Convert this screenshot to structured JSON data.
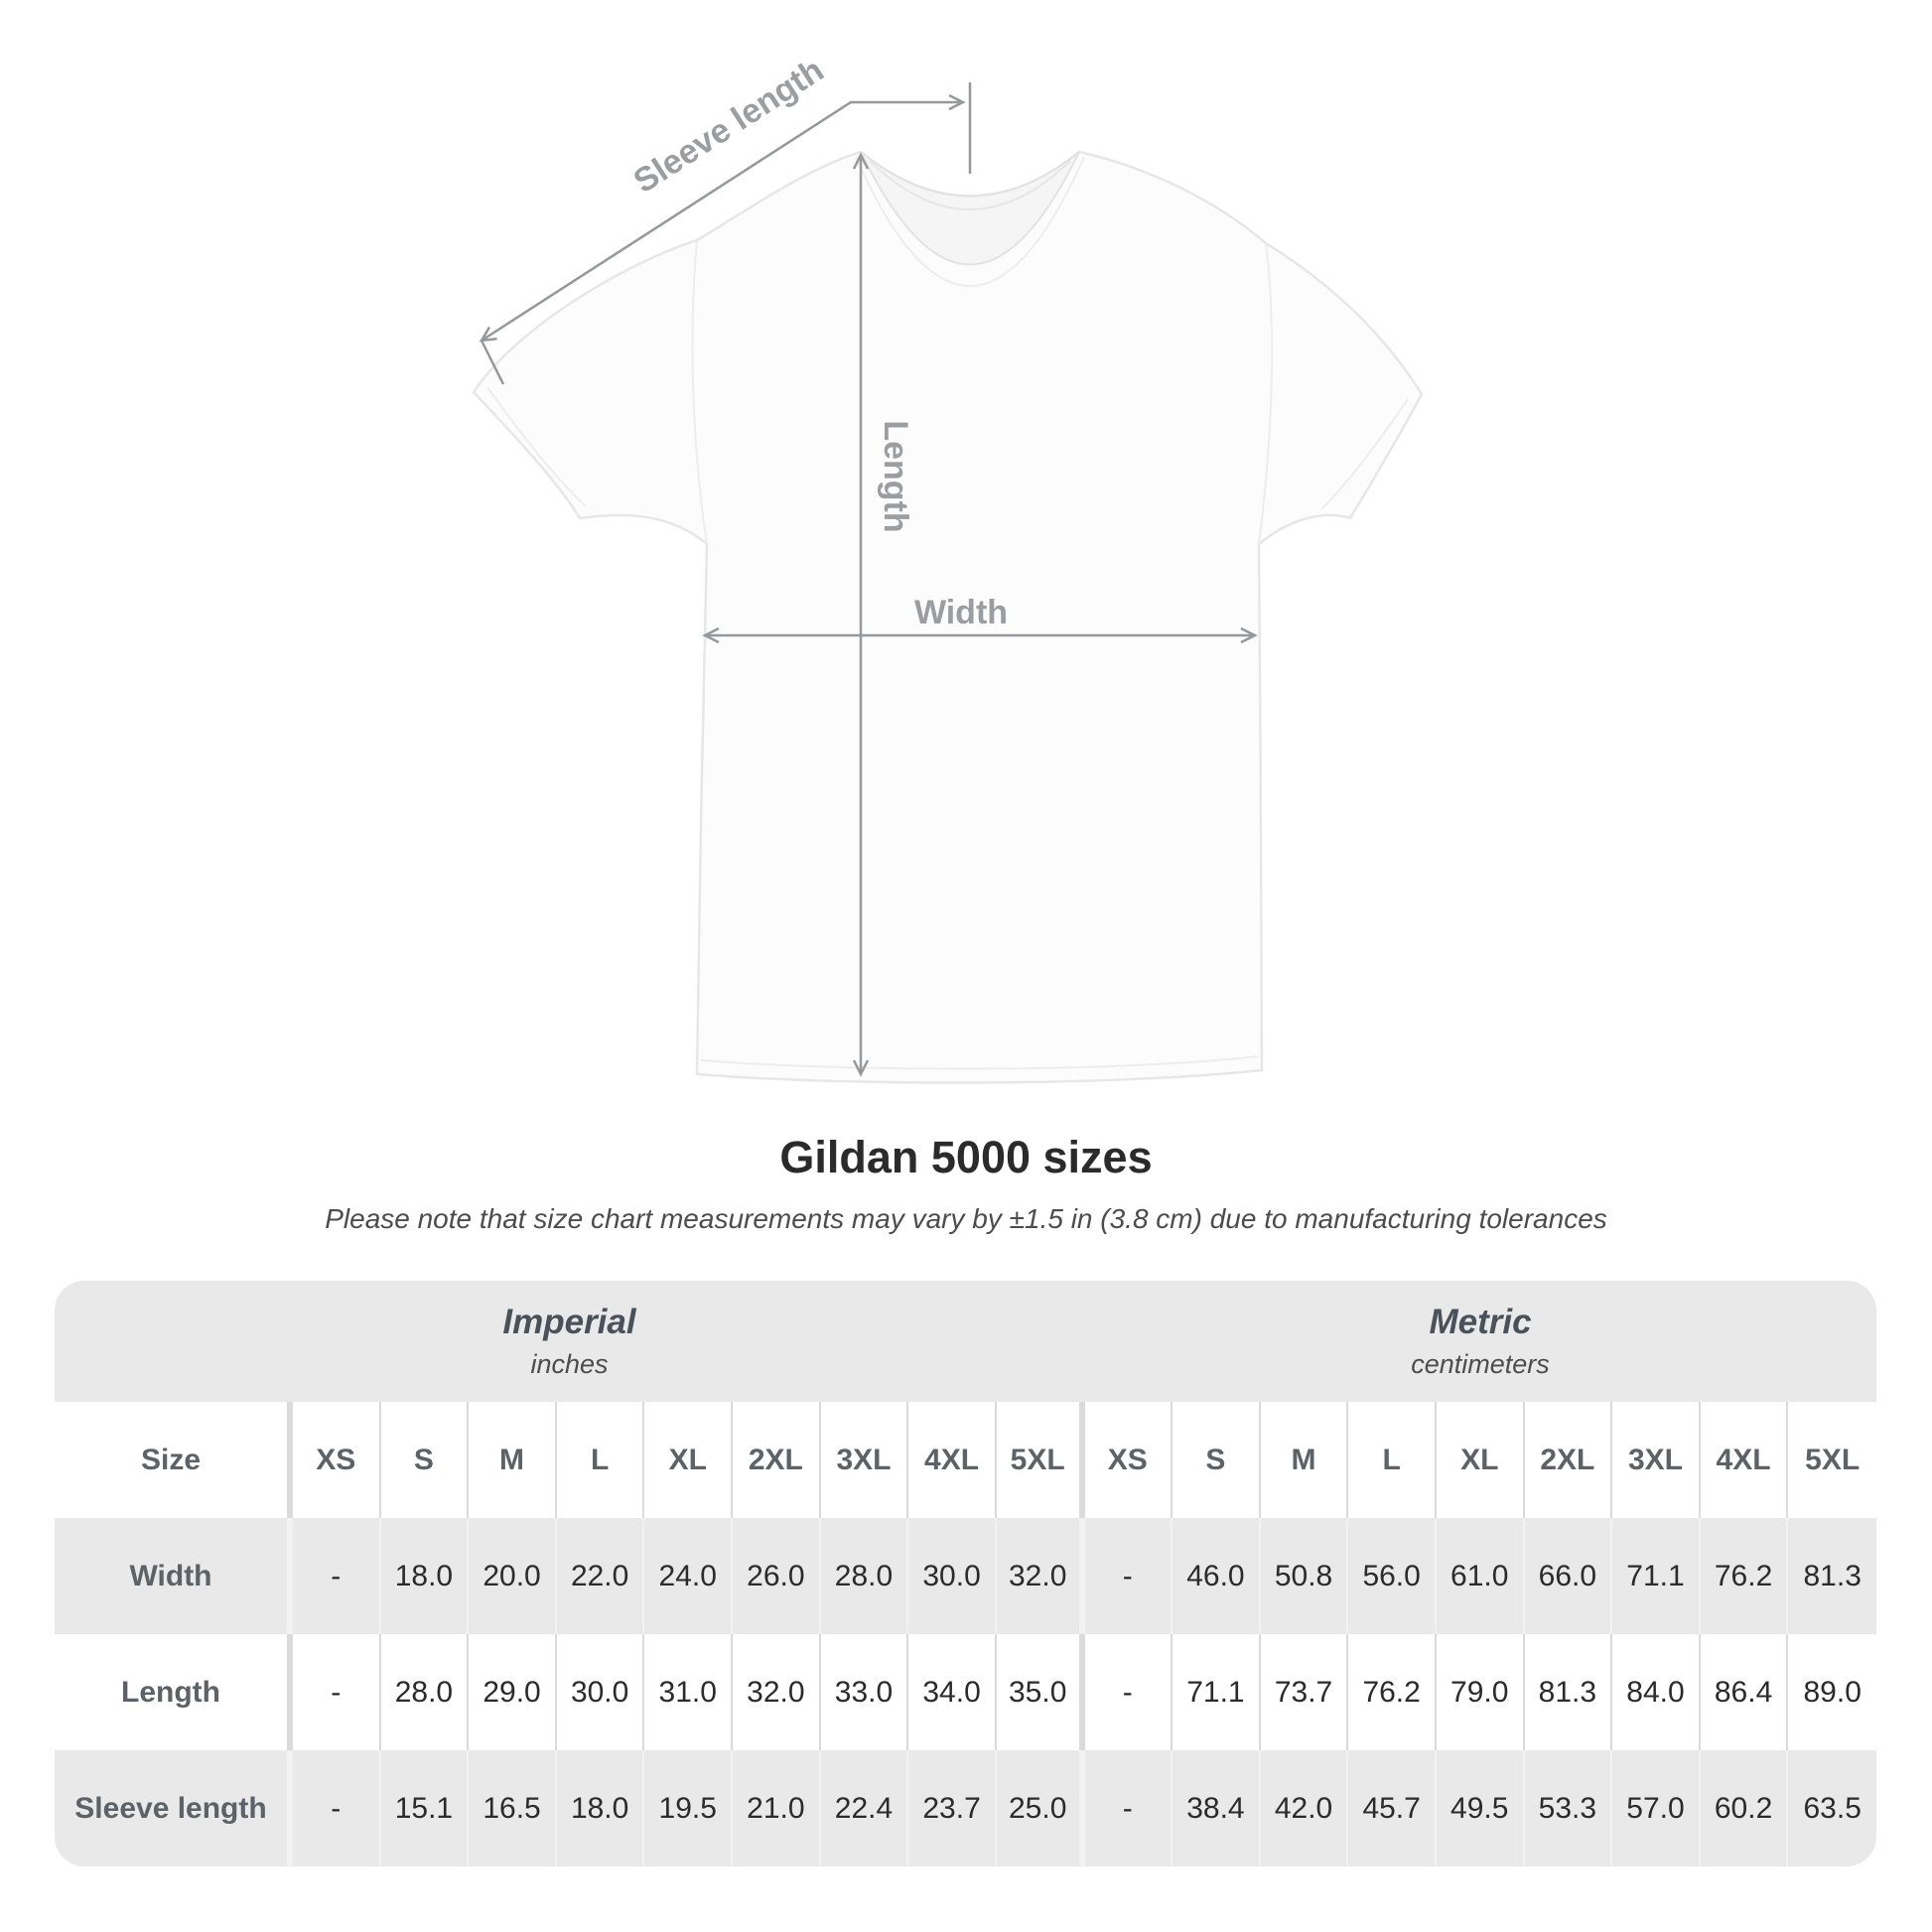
{
  "title": "Gildan 5000 sizes",
  "subtitle": "Please note that size chart measurements may vary by ±1.5 in (3.8 cm) due to manufacturing tolerances",
  "figure": {
    "sleeve_length_label": "Sleeve length",
    "length_label": "Length",
    "width_label": "Width",
    "line_color": "#96989a",
    "label_color": "#9b9ea1"
  },
  "table": {
    "imperial": {
      "title": "Imperial",
      "unit": "inches"
    },
    "metric": {
      "title": "Metric",
      "unit": "centimeters"
    },
    "size_label": "Size",
    "sizes": [
      "XS",
      "S",
      "M",
      "L",
      "XL",
      "2XL",
      "3XL",
      "4XL",
      "5XL"
    ],
    "rows": [
      {
        "label": "Width",
        "imperial": [
          "-",
          "18.0",
          "20.0",
          "22.0",
          "24.0",
          "26.0",
          "28.0",
          "30.0",
          "32.0"
        ],
        "metric": [
          "-",
          "46.0",
          "50.8",
          "56.0",
          "61.0",
          "66.0",
          "71.1",
          "76.2",
          "81.3"
        ]
      },
      {
        "label": "Length",
        "imperial": [
          "-",
          "28.0",
          "29.0",
          "30.0",
          "31.0",
          "32.0",
          "33.0",
          "34.0",
          "35.0"
        ],
        "metric": [
          "-",
          "71.1",
          "73.7",
          "76.2",
          "79.0",
          "81.3",
          "84.0",
          "86.4",
          "89.0"
        ]
      },
      {
        "label": "Sleeve length",
        "imperial": [
          "-",
          "15.1",
          "16.5",
          "18.0",
          "19.5",
          "21.0",
          "22.4",
          "23.7",
          "25.0"
        ],
        "metric": [
          "-",
          "38.4",
          "42.0",
          "45.7",
          "49.5",
          "53.3",
          "57.0",
          "60.2",
          "63.5"
        ]
      }
    ],
    "colors": {
      "band_bg": "#e9e9e9",
      "alt_row_bg": "#e9e9e9",
      "header_text": "#49525a",
      "value_text": "#2b2b2b"
    }
  },
  "chart_data": {
    "type": "table",
    "title": "Gildan 5000 sizes",
    "note": "Please note that size chart measurements may vary by ±1.5 in (3.8 cm) due to manufacturing tolerances",
    "sections": [
      {
        "name": "Imperial",
        "unit": "inches",
        "columns": [
          "XS",
          "S",
          "M",
          "L",
          "XL",
          "2XL",
          "3XL",
          "4XL",
          "5XL"
        ],
        "rows": [
          {
            "label": "Width",
            "values": [
              null,
              18.0,
              20.0,
              22.0,
              24.0,
              26.0,
              28.0,
              30.0,
              32.0
            ]
          },
          {
            "label": "Length",
            "values": [
              null,
              28.0,
              29.0,
              30.0,
              31.0,
              32.0,
              33.0,
              34.0,
              35.0
            ]
          },
          {
            "label": "Sleeve length",
            "values": [
              null,
              15.1,
              16.5,
              18.0,
              19.5,
              21.0,
              22.4,
              23.7,
              25.0
            ]
          }
        ]
      },
      {
        "name": "Metric",
        "unit": "centimeters",
        "columns": [
          "XS",
          "S",
          "M",
          "L",
          "XL",
          "2XL",
          "3XL",
          "4XL",
          "5XL"
        ],
        "rows": [
          {
            "label": "Width",
            "values": [
              null,
              46.0,
              50.8,
              56.0,
              61.0,
              66.0,
              71.1,
              76.2,
              81.3
            ]
          },
          {
            "label": "Length",
            "values": [
              null,
              71.1,
              73.7,
              76.2,
              79.0,
              81.3,
              84.0,
              86.4,
              89.0
            ]
          },
          {
            "label": "Sleeve length",
            "values": [
              null,
              38.4,
              42.0,
              45.7,
              49.5,
              53.3,
              57.0,
              60.2,
              63.5
            ]
          }
        ]
      }
    ]
  }
}
